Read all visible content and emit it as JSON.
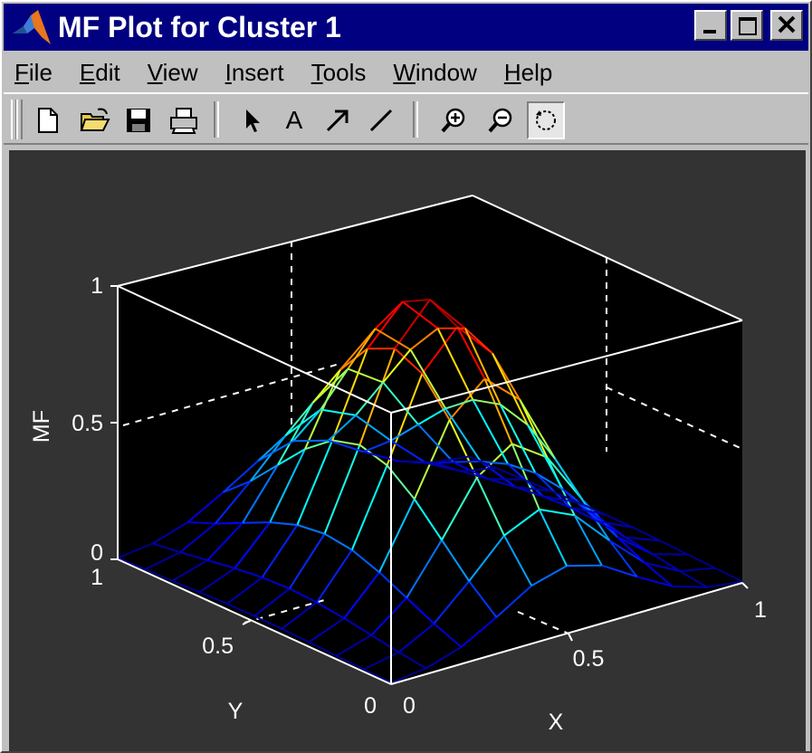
{
  "window": {
    "title": "MF Plot for Cluster 1",
    "controls": [
      "minimize",
      "maximize",
      "close"
    ]
  },
  "menu": [
    {
      "label": "File",
      "mnemonic": "F",
      "rest": "ile"
    },
    {
      "label": "Edit",
      "mnemonic": "E",
      "rest": "dit"
    },
    {
      "label": "View",
      "mnemonic": "V",
      "rest": "iew"
    },
    {
      "label": "Insert",
      "mnemonic": "I",
      "rest": "nsert"
    },
    {
      "label": "Tools",
      "mnemonic": "T",
      "rest": "ools"
    },
    {
      "label": "Window",
      "mnemonic": "W",
      "rest": "indow"
    },
    {
      "label": "Help",
      "mnemonic": "H",
      "rest": "elp"
    }
  ],
  "toolbar": {
    "tools": [
      "new-file-icon",
      "open-folder-icon",
      "save-icon",
      "print-icon",
      "select-arrow-icon",
      "insert-text-icon",
      "insert-arrow-icon",
      "insert-line-icon",
      "zoom-in-icon",
      "zoom-out-icon",
      "rotate-3d-icon"
    ],
    "text_tool_glyph": "A",
    "active_tool": "rotate-3d-icon"
  },
  "chart_data": {
    "type": "surface",
    "xlabel": "X",
    "ylabel": "Y",
    "zlabel": "MF",
    "xlim": [
      0,
      1
    ],
    "ylim": [
      0,
      1
    ],
    "zlim": [
      0,
      1
    ],
    "xticks": [
      "0",
      "0.5",
      "1"
    ],
    "yticks": [
      "0",
      "0.5",
      "1"
    ],
    "zticks": [
      "0",
      "0.5",
      "1"
    ],
    "grid_x": [
      0,
      0.1,
      0.2,
      0.3,
      0.4,
      0.5,
      0.6,
      0.7,
      0.8,
      0.9,
      1.0
    ],
    "grid_y": [
      0,
      0.1,
      0.2,
      0.3,
      0.4,
      0.5,
      0.6,
      0.7,
      0.8,
      0.9,
      1.0
    ],
    "center": {
      "x": 0.5,
      "y": 0.5
    },
    "sigma": {
      "x": 0.18,
      "y": 0.3
    },
    "peak": 1.0,
    "colormap": "jet",
    "background": "#000000"
  }
}
